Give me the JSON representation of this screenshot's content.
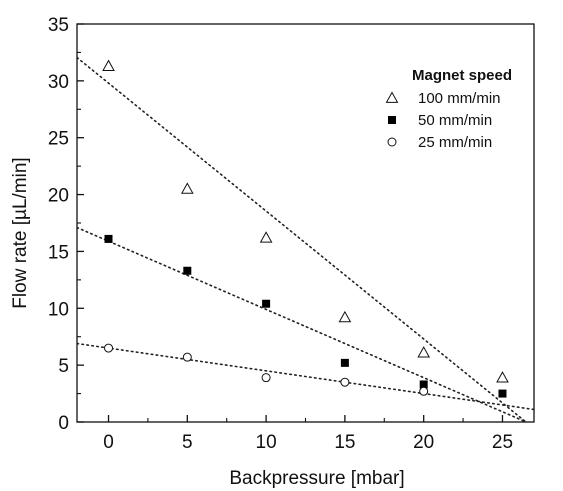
{
  "chart_data": {
    "type": "scatter",
    "title": "",
    "xlabel": "Backpressure [mbar]",
    "ylabel": "Flow rate [µL/min]",
    "xlim": [
      -2,
      27
    ],
    "ylim": [
      0,
      35
    ],
    "x_ticks": [
      0,
      5,
      10,
      15,
      20,
      25
    ],
    "y_ticks": [
      0,
      5,
      10,
      15,
      20,
      25,
      30,
      35
    ],
    "grid": false,
    "legend": {
      "title": "Magnet speed",
      "placement": "top-right"
    },
    "series": [
      {
        "name": "100 mm/min",
        "marker": "open-triangle",
        "x": [
          0,
          5,
          10,
          15,
          20,
          25
        ],
        "y": [
          31.3,
          20.5,
          16.2,
          9.2,
          6.1,
          3.9
        ],
        "fit": {
          "slope": -1.125,
          "intercept": 29.8
        }
      },
      {
        "name": "50 mm/min",
        "marker": "filled-square",
        "x": [
          0,
          5,
          10,
          15,
          20,
          25
        ],
        "y": [
          16.1,
          13.3,
          10.4,
          5.2,
          3.3,
          2.5
        ],
        "fit": {
          "slope": -0.6,
          "intercept": 15.9
        }
      },
      {
        "name": "25 mm/min",
        "marker": "open-circle",
        "x": [
          0,
          5,
          10,
          15,
          20
        ],
        "y": [
          6.5,
          5.7,
          3.9,
          3.5,
          2.7
        ],
        "fit": {
          "slope": -0.2,
          "intercept": 6.5
        }
      }
    ]
  }
}
